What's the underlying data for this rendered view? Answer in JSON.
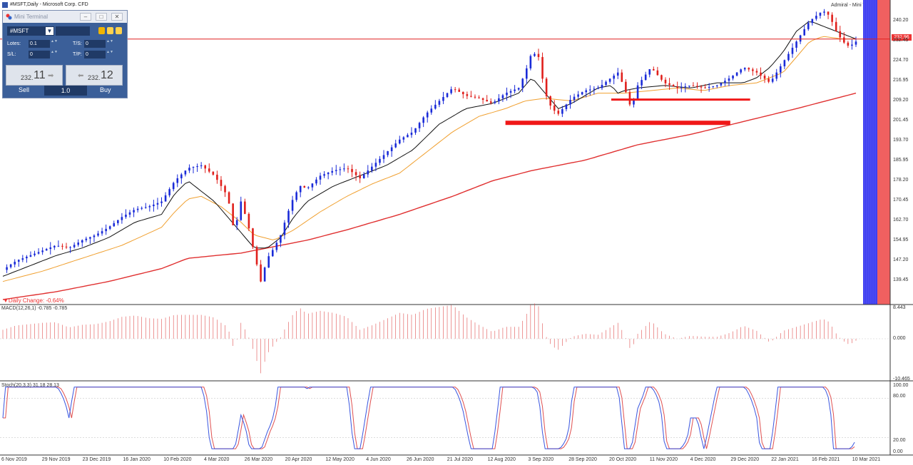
{
  "window": {
    "title": "#MSFT,Daily - Microsoft Corp. CFD",
    "broker": "Admiral - Mini Terminal"
  },
  "terminal": {
    "title": "Mini Terminal",
    "symbol": "#MSFT",
    "lots_label": "Lotes:",
    "lots_value": "0.1",
    "ts_label": "T/S:",
    "ts_value": "0",
    "sl_label": "S/L:",
    "sl_value": "0",
    "tp_label": "T/P:",
    "tp_value": "0",
    "sell_small": "232.",
    "sell_big": "11",
    "buy_small": "232.",
    "buy_big": "12",
    "sell_label": "Sell",
    "buy_label": "Buy",
    "volume": "1.0"
  },
  "main_panel": {
    "daily_change": "▼Daily Change: -0.64%",
    "current_price": "232.96"
  },
  "macd_panel": {
    "label": "MACD(12,26,1) -0.785 -0.785"
  },
  "stoch_panel": {
    "label": "Stoch(20,3,3) 31.18 28.13"
  },
  "colors": {
    "bull": "#1a2bd8",
    "bear": "#e0201c",
    "sma200": "#e03030",
    "ema_fast": "#111111",
    "ema_slow": "#f0a030",
    "macd": "#e05050",
    "stoch_k": "#3a56e0",
    "stoch_d": "#e05050"
  },
  "chart_data": [
    {
      "type": "candlestick",
      "title": "#MSFT,Daily",
      "x_dates": [
        "6 Nov 2019",
        "29 Nov 2019",
        "23 Dec 2019",
        "16 Jan 2020",
        "10 Feb 2020",
        "4 Mar 2020",
        "26 Mar 2020",
        "20 Apr 2020",
        "12 May 2020",
        "4 Jun 2020",
        "26 Jun 2020",
        "21 Jul 2020",
        "12 Aug 2020",
        "3 Sep 2020",
        "28 Sep 2020",
        "20 Oct 2020",
        "11 Nov 2020",
        "4 Dec 2020",
        "29 Dec 2020",
        "22 Jan 2021",
        "16 Feb 2021",
        "10 Mar 2021"
      ],
      "y_ticks": [
        "240.20",
        "232.45",
        "224.70",
        "216.95",
        "209.20",
        "201.45",
        "193.70",
        "185.95",
        "178.20",
        "170.45",
        "162.70",
        "154.95",
        "147.20",
        "139.45"
      ],
      "ylim": [
        132,
        247
      ],
      "close_path": [
        [
          0,
          143.5
        ],
        [
          10,
          147
        ],
        [
          20,
          149
        ],
        [
          30,
          151
        ],
        [
          40,
          153
        ],
        [
          50,
          152
        ],
        [
          60,
          155
        ],
        [
          70,
          157
        ],
        [
          80,
          160
        ],
        [
          90,
          164
        ],
        [
          100,
          167
        ],
        [
          110,
          168
        ],
        [
          120,
          170
        ],
        [
          130,
          178
        ],
        [
          140,
          183
        ],
        [
          150,
          184
        ],
        [
          160,
          180
        ],
        [
          170,
          172
        ],
        [
          175,
          158
        ],
        [
          180,
          170
        ],
        [
          185,
          162
        ],
        [
          190,
          150
        ],
        [
          195,
          139
        ],
        [
          200,
          148
        ],
        [
          205,
          152
        ],
        [
          210,
          157
        ],
        [
          215,
          165
        ],
        [
          220,
          172
        ],
        [
          225,
          176
        ],
        [
          230,
          175
        ],
        [
          240,
          180
        ],
        [
          250,
          182
        ],
        [
          260,
          183
        ],
        [
          270,
          179
        ],
        [
          280,
          184
        ],
        [
          290,
          189
        ],
        [
          300,
          194
        ],
        [
          310,
          197
        ],
        [
          320,
          204
        ],
        [
          330,
          209
        ],
        [
          340,
          214
        ],
        [
          350,
          211
        ],
        [
          360,
          210
        ],
        [
          370,
          208
        ],
        [
          380,
          212
        ],
        [
          390,
          214
        ],
        [
          395,
          220
        ],
        [
          400,
          228
        ],
        [
          405,
          226
        ],
        [
          410,
          212
        ],
        [
          415,
          206
        ],
        [
          420,
          204
        ],
        [
          430,
          210
        ],
        [
          440,
          213
        ],
        [
          450,
          214
        ],
        [
          460,
          218
        ],
        [
          465,
          220
        ],
        [
          470,
          214
        ],
        [
          475,
          206
        ],
        [
          480,
          215
        ],
        [
          490,
          222
        ],
        [
          500,
          216
        ],
        [
          510,
          214
        ],
        [
          520,
          215
        ],
        [
          530,
          214
        ],
        [
          540,
          215
        ],
        [
          550,
          218
        ],
        [
          560,
          222
        ],
        [
          570,
          220
        ],
        [
          580,
          216
        ],
        [
          590,
          224
        ],
        [
          600,
          232
        ],
        [
          610,
          240
        ],
        [
          620,
          244
        ],
        [
          625,
          242
        ],
        [
          630,
          236
        ],
        [
          635,
          232
        ],
        [
          640,
          230
        ],
        [
          645,
          232
        ]
      ],
      "sma200_path": [
        [
          0,
          132
        ],
        [
          40,
          135
        ],
        [
          80,
          139
        ],
        [
          120,
          144
        ],
        [
          140,
          148
        ],
        [
          160,
          149
        ],
        [
          180,
          150
        ],
        [
          200,
          152
        ],
        [
          230,
          155
        ],
        [
          260,
          159
        ],
        [
          300,
          165
        ],
        [
          340,
          172
        ],
        [
          370,
          178
        ],
        [
          400,
          182
        ],
        [
          440,
          186
        ],
        [
          480,
          192
        ],
        [
          520,
          196
        ],
        [
          560,
          201
        ],
        [
          600,
          206
        ],
        [
          630,
          210
        ],
        [
          645,
          212
        ]
      ],
      "ema_fast_path": [
        [
          0,
          141
        ],
        [
          20,
          145
        ],
        [
          40,
          149
        ],
        [
          60,
          152
        ],
        [
          80,
          156
        ],
        [
          100,
          162
        ],
        [
          120,
          165
        ],
        [
          130,
          173
        ],
        [
          140,
          178
        ],
        [
          150,
          174
        ],
        [
          160,
          170
        ],
        [
          170,
          164
        ],
        [
          180,
          158
        ],
        [
          190,
          152
        ],
        [
          200,
          152
        ],
        [
          210,
          156
        ],
        [
          220,
          164
        ],
        [
          230,
          170
        ],
        [
          250,
          176
        ],
        [
          270,
          180
        ],
        [
          290,
          184
        ],
        [
          310,
          190
        ],
        [
          330,
          200
        ],
        [
          350,
          206
        ],
        [
          370,
          208
        ],
        [
          390,
          212
        ],
        [
          400,
          218
        ],
        [
          410,
          212
        ],
        [
          420,
          206
        ],
        [
          430,
          208
        ],
        [
          440,
          211
        ],
        [
          450,
          214
        ],
        [
          460,
          215
        ],
        [
          465,
          212
        ],
        [
          470,
          213
        ],
        [
          480,
          214
        ],
        [
          500,
          215
        ],
        [
          520,
          214
        ],
        [
          540,
          216
        ],
        [
          560,
          216
        ],
        [
          570,
          218
        ],
        [
          580,
          222
        ],
        [
          590,
          228
        ],
        [
          600,
          236
        ],
        [
          610,
          240
        ],
        [
          620,
          238
        ],
        [
          630,
          236
        ],
        [
          645,
          233
        ]
      ],
      "ema_slow_path": [
        [
          0,
          139
        ],
        [
          30,
          143
        ],
        [
          60,
          148
        ],
        [
          90,
          153
        ],
        [
          120,
          160
        ],
        [
          130,
          166
        ],
        [
          140,
          171
        ],
        [
          150,
          172
        ],
        [
          165,
          168
        ],
        [
          180,
          162
        ],
        [
          190,
          157
        ],
        [
          205,
          155
        ],
        [
          220,
          159
        ],
        [
          240,
          166
        ],
        [
          260,
          172
        ],
        [
          280,
          177
        ],
        [
          300,
          181
        ],
        [
          320,
          189
        ],
        [
          340,
          197
        ],
        [
          360,
          203
        ],
        [
          380,
          206
        ],
        [
          395,
          209
        ],
        [
          410,
          210
        ],
        [
          430,
          209
        ],
        [
          450,
          212
        ],
        [
          470,
          212
        ],
        [
          490,
          213
        ],
        [
          510,
          214
        ],
        [
          530,
          213
        ],
        [
          550,
          215
        ],
        [
          570,
          216
        ],
        [
          590,
          220
        ],
        [
          600,
          226
        ],
        [
          610,
          232
        ],
        [
          620,
          234
        ],
        [
          635,
          233
        ],
        [
          645,
          233
        ]
      ],
      "support_levels": [
        [
          200.5,
          0.55
        ],
        [
          209.5,
          0.31
        ]
      ],
      "resistance_level": 232.96
    },
    {
      "type": "bar",
      "title": "MACD(12,26,1) -0.785 -0.785",
      "ylim": [
        -10.465,
        8.443
      ],
      "y_ticks": [
        "8.443",
        "0.000",
        "-10.465"
      ]
    },
    {
      "type": "line",
      "title": "Stoch(20,3,3) 31.18 28.13",
      "ylim": [
        0,
        100
      ],
      "y_ticks": [
        "100.00",
        "80.00",
        "20.00",
        "0.00"
      ]
    }
  ]
}
